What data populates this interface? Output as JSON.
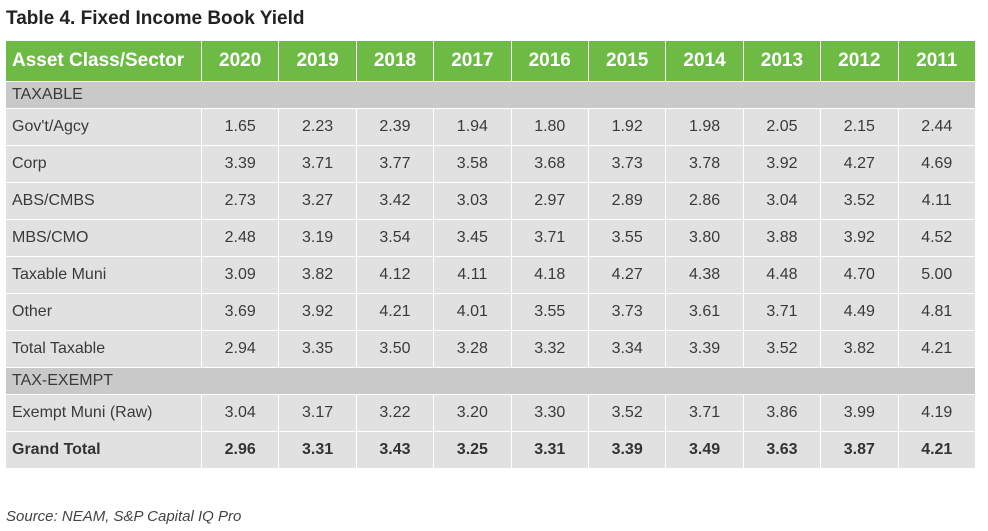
{
  "title": "Table 4. Fixed Income Book Yield",
  "header": [
    "Asset Class/Sector",
    "2020",
    "2019",
    "2018",
    "2017",
    "2016",
    "2015",
    "2014",
    "2013",
    "2012",
    "2011"
  ],
  "sections": [
    {
      "label": "TAXABLE",
      "rows": [
        {
          "label": "Gov't/Agcy",
          "values": [
            "1.65",
            "2.23",
            "2.39",
            "1.94",
            "1.80",
            "1.92",
            "1.98",
            "2.05",
            "2.15",
            "2.44"
          ]
        },
        {
          "label": "Corp",
          "values": [
            "3.39",
            "3.71",
            "3.77",
            "3.58",
            "3.68",
            "3.73",
            "3.78",
            "3.92",
            "4.27",
            "4.69"
          ]
        },
        {
          "label": "ABS/CMBS",
          "values": [
            "2.73",
            "3.27",
            "3.42",
            "3.03",
            "2.97",
            "2.89",
            "2.86",
            "3.04",
            "3.52",
            "4.11"
          ]
        },
        {
          "label": "MBS/CMO",
          "values": [
            "2.48",
            "3.19",
            "3.54",
            "3.45",
            "3.71",
            "3.55",
            "3.80",
            "3.88",
            "3.92",
            "4.52"
          ]
        },
        {
          "label": "Taxable Muni",
          "values": [
            "3.09",
            "3.82",
            "4.12",
            "4.11",
            "4.18",
            "4.27",
            "4.38",
            "4.48",
            "4.70",
            "5.00"
          ]
        },
        {
          "label": "Other",
          "values": [
            "3.69",
            "3.92",
            "4.21",
            "4.01",
            "3.55",
            "3.73",
            "3.61",
            "3.71",
            "4.49",
            "4.81"
          ]
        },
        {
          "label": "Total Taxable",
          "values": [
            "2.94",
            "3.35",
            "3.50",
            "3.28",
            "3.32",
            "3.34",
            "3.39",
            "3.52",
            "3.82",
            "4.21"
          ]
        }
      ]
    },
    {
      "label": "TAX-EXEMPT",
      "rows": [
        {
          "label": "Exempt Muni (Raw)",
          "values": [
            "3.04",
            "3.17",
            "3.22",
            "3.20",
            "3.30",
            "3.52",
            "3.71",
            "3.86",
            "3.99",
            "4.19"
          ]
        }
      ]
    }
  ],
  "grand_total": {
    "label": "Grand Total",
    "values": [
      "2.96",
      "3.31",
      "3.43",
      "3.25",
      "3.31",
      "3.39",
      "3.49",
      "3.63",
      "3.87",
      "4.21"
    ]
  },
  "source": "Source: NEAM, S&P Capital IQ Pro",
  "colors": {
    "header_bg": "#6dbb45",
    "section_bg": "#c9c9c9",
    "row_bg": "#e1e1e1"
  }
}
